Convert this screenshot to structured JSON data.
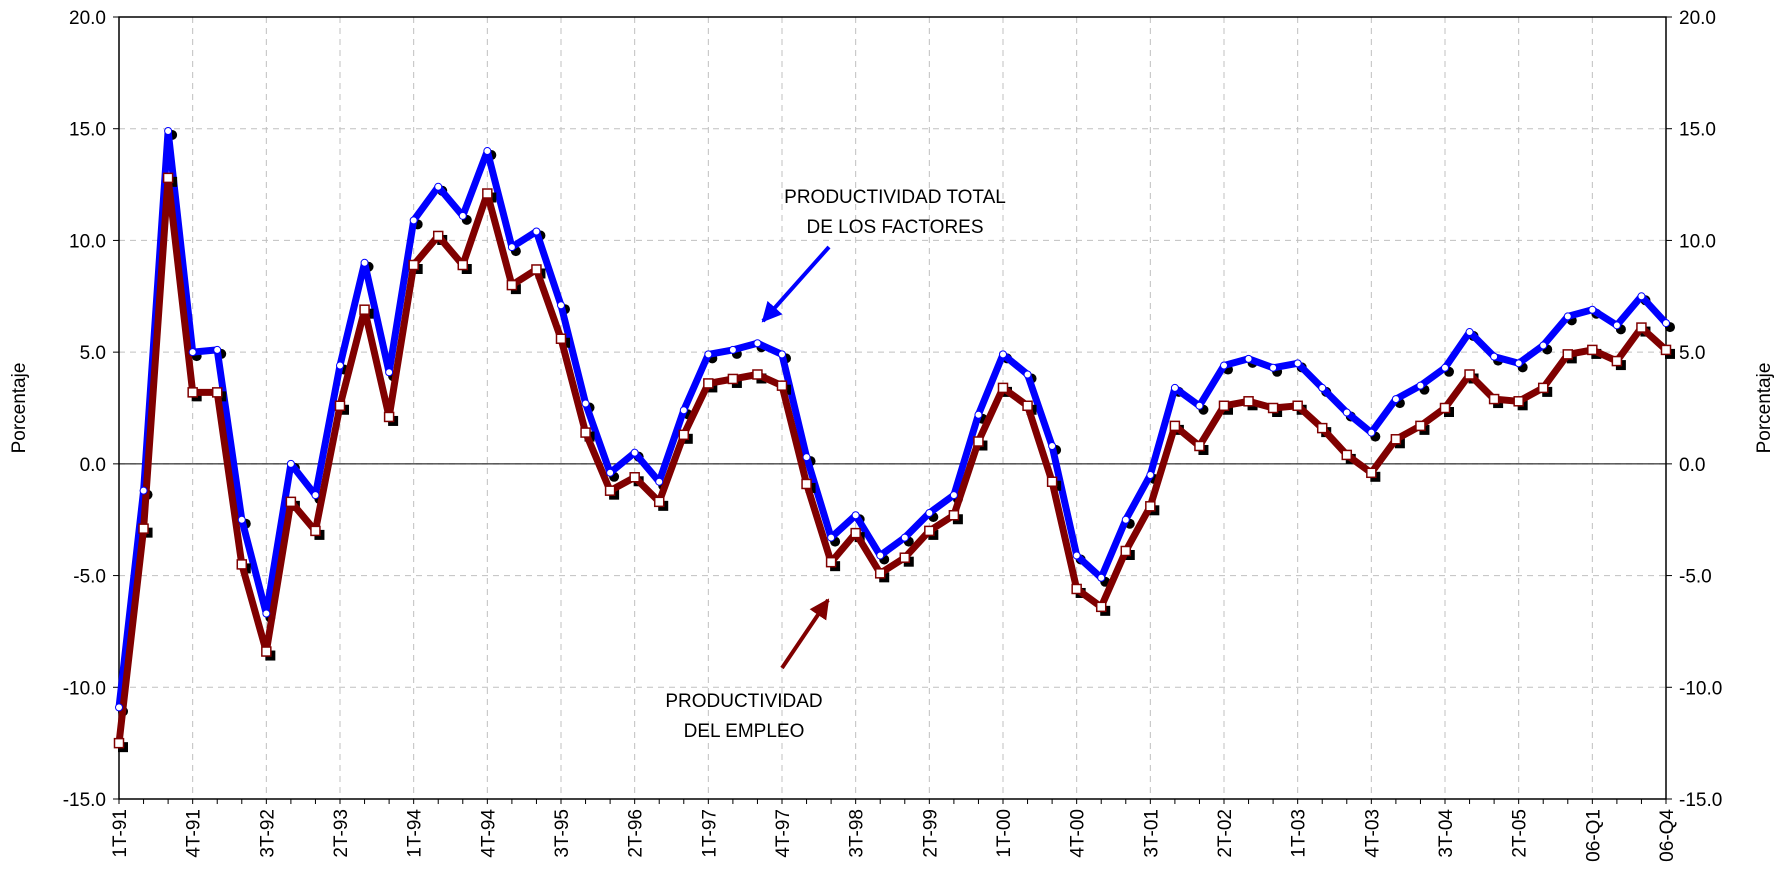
{
  "chart_data": {
    "type": "line",
    "y_label": "Porcentaje",
    "y2_label": "Porcentaje",
    "annotations": [
      {
        "lines": [
          "PRODUCTIVIDAD TOTAL",
          "DE LOS FACTORES"
        ],
        "color": "#0000ff"
      },
      {
        "lines": [
          "PRODUCTIVIDAD",
          "DEL EMPLEO"
        ],
        "color": "#800000"
      }
    ],
    "categories": [
      "1T-91",
      null,
      null,
      "4T-91",
      null,
      null,
      "3T-92",
      null,
      null,
      "2T-93",
      null,
      null,
      "1T-94",
      null,
      null,
      "4T-94",
      null,
      null,
      "3T-95",
      null,
      null,
      "2T-96",
      null,
      null,
      "1T-97",
      null,
      null,
      "4T-97",
      null,
      null,
      "3T-98",
      null,
      null,
      "2T-99",
      null,
      null,
      "1T-00",
      null,
      null,
      "4T-00",
      null,
      null,
      "3T-01",
      null,
      null,
      "2T-02",
      null,
      null,
      "1T-03",
      null,
      null,
      "4T-03",
      null,
      null,
      "3T-04",
      null,
      null,
      "2T-05",
      null,
      null,
      "06-Q1",
      null,
      null,
      "06-Q4"
    ],
    "series": [
      {
        "color": "#0000ff",
        "marker": "circle",
        "values": [
          -10.9,
          -1.2,
          14.9,
          5.0,
          5.1,
          -2.5,
          -6.7,
          0.0,
          -1.4,
          4.4,
          9.0,
          4.1,
          10.9,
          12.4,
          11.1,
          14.0,
          9.7,
          10.4,
          7.1,
          2.7,
          -0.4,
          0.5,
          -0.8,
          2.4,
          4.9,
          5.1,
          5.4,
          4.9,
          0.3,
          -3.3,
          -2.3,
          -4.1,
          -3.3,
          -2.2,
          -1.4,
          2.2,
          4.9,
          4.0,
          0.8,
          -4.1,
          -5.1,
          -2.5,
          -0.5,
          3.4,
          2.6,
          4.4,
          4.7,
          4.3,
          4.5,
          3.4,
          2.3,
          1.4,
          2.9,
          3.5,
          4.3,
          5.9,
          4.8,
          4.5,
          5.3,
          6.6,
          6.9,
          6.2,
          7.5,
          6.3
        ]
      },
      {
        "color": "#800000",
        "marker": "square",
        "values": [
          -12.5,
          -2.9,
          12.8,
          3.2,
          3.2,
          -4.5,
          -8.4,
          -1.7,
          -3.0,
          2.6,
          6.9,
          2.1,
          8.9,
          10.2,
          8.9,
          12.1,
          8.0,
          8.7,
          5.6,
          1.4,
          -1.2,
          -0.6,
          -1.7,
          1.3,
          3.6,
          3.8,
          4.0,
          3.5,
          -0.9,
          -4.4,
          -3.1,
          -4.9,
          -4.2,
          -3.0,
          -2.3,
          1.0,
          3.4,
          2.6,
          -0.8,
          -5.6,
          -6.4,
          -3.9,
          -1.9,
          1.7,
          0.8,
          2.6,
          2.8,
          2.5,
          2.6,
          1.6,
          0.4,
          -0.4,
          1.1,
          1.7,
          2.5,
          4.0,
          2.9,
          2.8,
          3.4,
          4.9,
          5.1,
          4.6,
          6.1,
          5.1
        ]
      }
    ],
    "ylim": [
      -15,
      20
    ],
    "yticks": [
      {
        "value": -15,
        "label": "-15.0"
      },
      {
        "value": -10,
        "label": "-10.0"
      },
      {
        "value": -5,
        "label": "-5.0"
      },
      {
        "value": 0,
        "label": "0.0"
      },
      {
        "value": 5,
        "label": "5.0"
      },
      {
        "value": 10,
        "label": "10.0"
      },
      {
        "value": 15,
        "label": "15.0"
      },
      {
        "value": 20,
        "label": "20.0"
      }
    ],
    "y2lim": [
      -15,
      20
    ],
    "y2ticks": [
      {
        "value": -15,
        "label": "-15.0"
      },
      {
        "value": -10,
        "label": "-10.0"
      },
      {
        "value": -5,
        "label": "-5.0"
      },
      {
        "value": 0,
        "label": "0.0"
      },
      {
        "value": 5,
        "label": "5.0"
      },
      {
        "value": 10,
        "label": "10.0"
      },
      {
        "value": 15,
        "label": "15.0"
      },
      {
        "value": 20,
        "label": "20.0"
      }
    ],
    "grid": true
  }
}
